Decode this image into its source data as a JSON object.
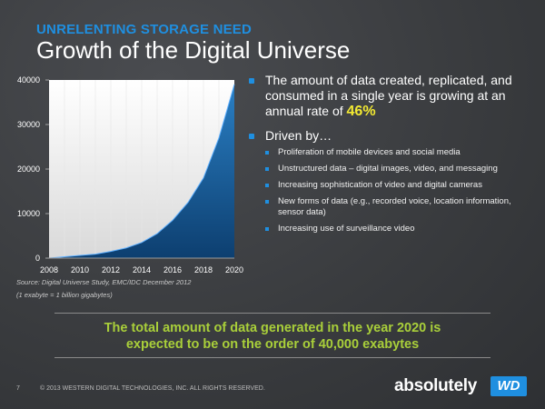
{
  "header": {
    "kicker": "UNRELENTING STORAGE NEED",
    "title": "Growth of the Digital Universe"
  },
  "bullets": {
    "main1_text": "The amount of data created, replicated, and consumed in a single year is growing at an annual rate of ",
    "main1_highlight": "46%",
    "main2": "Driven by…",
    "sub": [
      "Proliferation of mobile devices and social media",
      "Unstructured data – digital images, video, and messaging",
      "Increasing sophistication of video and digital cameras",
      "New forms of data (e.g., recorded voice, location information, sensor data)",
      "Increasing use of surveillance video"
    ]
  },
  "source": "Source: Digital Universe Study, EMC/IDC December 2012",
  "note": "(1 exabyte = 1 billion gigabytes)",
  "callout": {
    "line1": "The total amount of data generated in the year 2020 is",
    "line2": "expected to be on the order of 40,000 exabytes"
  },
  "footer": {
    "page": "7",
    "copyright": "© 2013 WESTERN DIGITAL TECHNOLOGIES, INC. ALL RIGHTS RESERVED.",
    "logo_word": "absolutely",
    "logo_badge": "WD"
  },
  "colors": {
    "accent_blue": "#1f8fe0",
    "highlight_yellow": "#f3ea32",
    "callout_green": "#a9cf3a"
  },
  "chart_data": {
    "type": "area",
    "x": [
      2008,
      2009,
      2010,
      2011,
      2012,
      2013,
      2014,
      2015,
      2016,
      2017,
      2018,
      2019,
      2020
    ],
    "values": [
      0,
      300,
      600,
      900,
      1500,
      2300,
      3500,
      5500,
      8500,
      12500,
      18000,
      27000,
      39000
    ],
    "xticks": [
      "2008",
      "2010",
      "2012",
      "2014",
      "2016",
      "2018",
      "2020"
    ],
    "yticks": [
      "0",
      "10000",
      "20000",
      "30000",
      "40000"
    ],
    "xlim": [
      2008,
      2020
    ],
    "ylim": [
      0,
      40000
    ],
    "grid": true,
    "title": "",
    "xlabel": "",
    "ylabel": ""
  }
}
